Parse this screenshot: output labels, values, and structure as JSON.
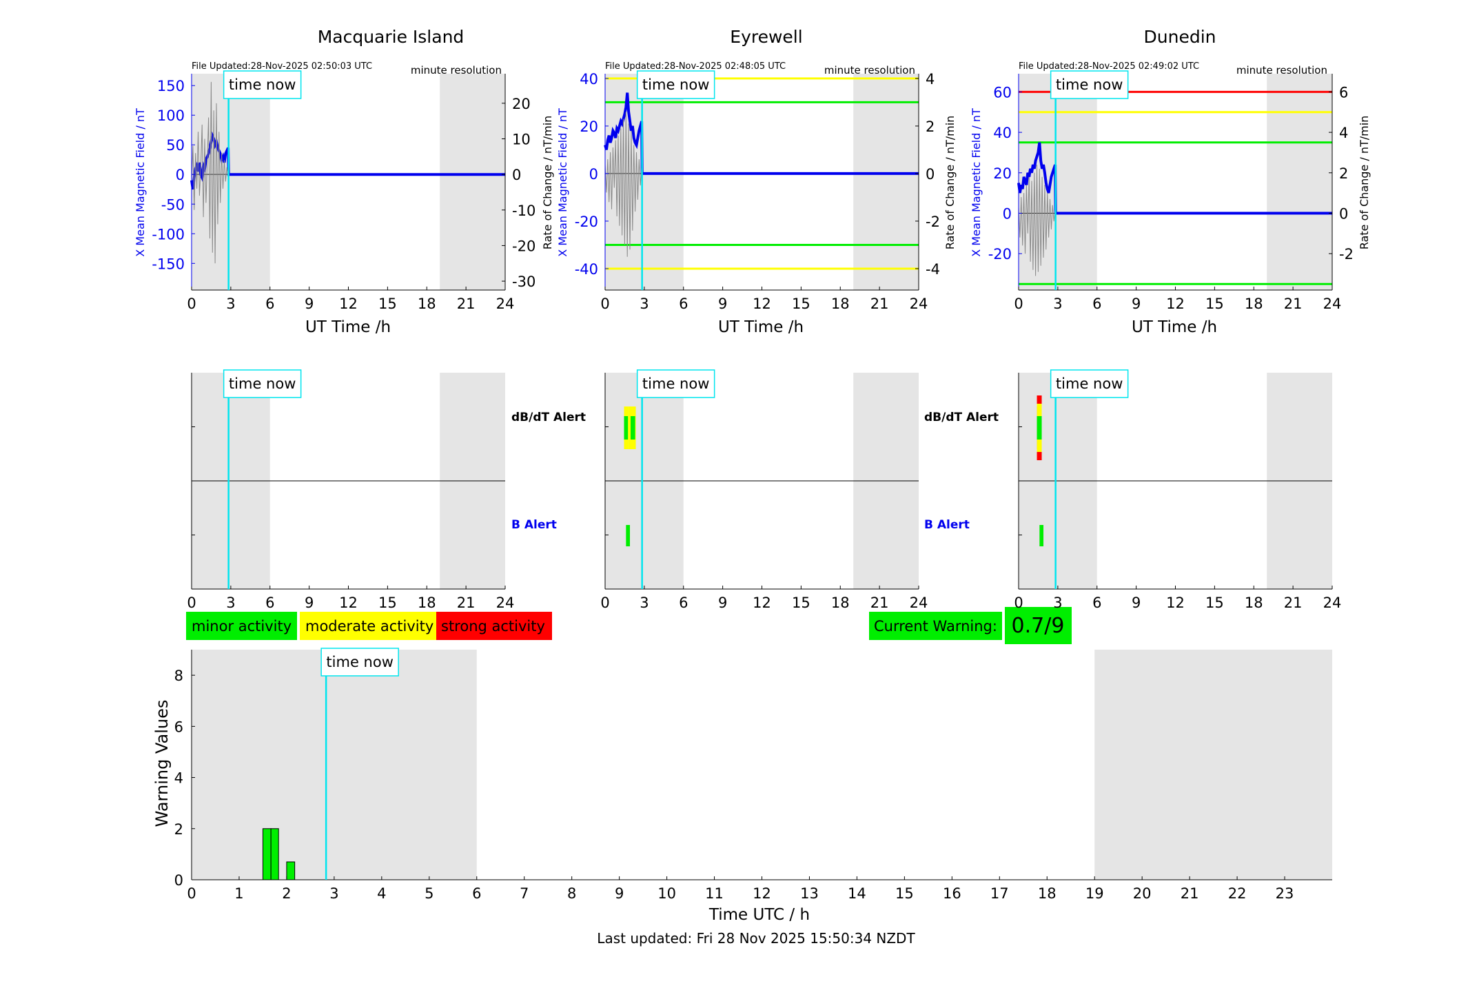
{
  "stations": [
    {
      "name": "Macquarie Island",
      "file_updated": "File Updated:28-Nov-2025 02:50:03 UTC",
      "resolution": "minute resolution",
      "time_now_label": "time now",
      "xlabel": "UT Time /h",
      "left_ylabel": "X Mean Magnetic Field / nT",
      "right_ylabel": "Rate of Change / nT/min"
    },
    {
      "name": "Eyrewell",
      "file_updated": "File Updated:28-Nov-2025 02:48:05 UTC",
      "resolution": "minute resolution",
      "time_now_label": "time now",
      "xlabel": "UT Time /h",
      "left_ylabel": "X Mean Magnetic Field / nT",
      "right_ylabel": "Rate of Change / nT/min"
    },
    {
      "name": "Dunedin",
      "file_updated": "File Updated:28-Nov-2025 02:49:02 UTC",
      "resolution": "minute resolution",
      "time_now_label": "time now",
      "xlabel": "UT Time /h",
      "left_ylabel": "X Mean Magnetic Field / nT",
      "right_ylabel": "Rate of Change / nT/min"
    }
  ],
  "alerts": {
    "dbdt_label": "dB/dT Alert",
    "b_label": "B Alert"
  },
  "legend": {
    "minor": "minor activity",
    "moderate": "moderate activity",
    "strong": "strong activity"
  },
  "current_warning": {
    "label": "Current Warning:",
    "value": "0.7/9"
  },
  "warning_chart": {
    "ylabel": "Warning Values",
    "xlabel": "Time UTC / h",
    "time_now_label": "time now"
  },
  "last_updated": "Last updated: Fri 28 Nov 2025 15:50:34 NZDT",
  "colors": {
    "minor": "#00ee00",
    "moderate": "#ffff00",
    "strong": "#ff0000",
    "time_now": "#00e5ee",
    "field": "#0000ee",
    "shade": "#e5e5e5"
  },
  "chart_data": [
    {
      "type": "line",
      "station": "Macquarie Island",
      "x_unit": "h",
      "xlim": [
        0,
        24
      ],
      "xticks": [
        0,
        3,
        6,
        9,
        12,
        15,
        18,
        21,
        24
      ],
      "left_ylim": [
        -195,
        170
      ],
      "left_yticks": [
        -150,
        -100,
        -50,
        0,
        50,
        100,
        150
      ],
      "right_ylim": [
        -32.5,
        28.3
      ],
      "right_yticks": [
        -30,
        -20,
        -10,
        0,
        10,
        20
      ],
      "time_now": 2.83,
      "shaded_hours": [
        [
          0,
          6
        ],
        [
          19,
          24
        ]
      ],
      "thresholds_field": [],
      "series": [
        {
          "axis": "left",
          "x": [
            0,
            0.1,
            0.2,
            0.3,
            0.4,
            0.5,
            0.6,
            0.7,
            0.8,
            0.9,
            1.0,
            1.1,
            1.2,
            1.3,
            1.4,
            1.5,
            1.6,
            1.7,
            1.8,
            1.9,
            2.0,
            2.1,
            2.2,
            2.3,
            2.4,
            2.5,
            2.6,
            2.7,
            2.8,
            2.83,
            24
          ],
          "y": [
            -10,
            -25,
            -5,
            10,
            15,
            5,
            20,
            0,
            -5,
            15,
            10,
            25,
            30,
            35,
            45,
            55,
            65,
            60,
            50,
            55,
            45,
            40,
            35,
            25,
            30,
            20,
            35,
            40,
            45,
            0,
            0
          ]
        },
        {
          "axis": "right",
          "x": [
            0,
            0.1,
            0.2,
            0.3,
            0.4,
            0.5,
            0.6,
            0.7,
            0.8,
            0.9,
            1.0,
            1.1,
            1.2,
            1.3,
            1.4,
            1.5,
            1.6,
            1.7,
            1.8,
            1.9,
            2.0,
            2.1,
            2.2,
            2.3,
            2.4,
            2.5,
            2.6,
            2.7,
            2.8,
            2.83
          ],
          "y": [
            -2,
            8,
            -10,
            6,
            -4,
            12,
            -6,
            2,
            14,
            -12,
            10,
            -8,
            4,
            16,
            -18,
            26,
            -22,
            18,
            -25,
            20,
            -14,
            12,
            -8,
            6,
            -4,
            4,
            -2,
            2,
            -1,
            0
          ]
        }
      ]
    },
    {
      "type": "line",
      "station": "Eyrewell",
      "x_unit": "h",
      "xlim": [
        0,
        24
      ],
      "xticks": [
        0,
        3,
        6,
        9,
        12,
        15,
        18,
        21,
        24
      ],
      "left_ylim": [
        -49,
        42
      ],
      "left_yticks": [
        -40,
        -20,
        0,
        20,
        40
      ],
      "right_ylim": [
        -4.9,
        4.2
      ],
      "right_yticks": [
        -4,
        -2,
        0,
        2,
        4
      ],
      "time_now": 2.83,
      "shaded_hours": [
        [
          0,
          6
        ],
        [
          19,
          24
        ]
      ],
      "thresholds_field": [
        {
          "value": 40,
          "color": "moderate"
        },
        {
          "value": 30,
          "color": "minor"
        },
        {
          "value": -30,
          "color": "minor"
        },
        {
          "value": -40,
          "color": "moderate"
        }
      ],
      "series": [
        {
          "axis": "left",
          "x": [
            0,
            0.1,
            0.2,
            0.3,
            0.4,
            0.5,
            0.6,
            0.7,
            0.8,
            0.9,
            1.0,
            1.1,
            1.2,
            1.3,
            1.4,
            1.5,
            1.6,
            1.7,
            1.8,
            1.9,
            2.0,
            2.1,
            2.2,
            2.3,
            2.4,
            2.5,
            2.6,
            2.7,
            2.8,
            2.83,
            24
          ],
          "y": [
            12,
            10,
            14,
            16,
            13,
            15,
            18,
            17,
            15,
            19,
            18,
            20,
            22,
            21,
            23,
            25,
            28,
            34,
            26,
            22,
            18,
            20,
            15,
            13,
            12,
            15,
            18,
            20,
            22,
            0,
            0
          ]
        },
        {
          "axis": "right",
          "x": [
            0,
            0.1,
            0.2,
            0.3,
            0.4,
            0.5,
            0.6,
            0.7,
            0.8,
            0.9,
            1.0,
            1.1,
            1.2,
            1.3,
            1.4,
            1.5,
            1.6,
            1.7,
            1.8,
            1.9,
            2.0,
            2.1,
            2.2,
            2.3,
            2.4,
            2.5,
            2.6,
            2.7,
            2.8,
            2.83
          ],
          "y": [
            0.4,
            -0.8,
            0.6,
            -1.2,
            0.9,
            -1.5,
            1.1,
            -0.6,
            1.4,
            -1.8,
            1.6,
            -2.2,
            1.9,
            -2.6,
            2.3,
            -3.0,
            2.6,
            -3.5,
            2.1,
            -3.2,
            1.8,
            -2.4,
            1.2,
            -1.6,
            0.9,
            -1.1,
            0.6,
            -0.5,
            0.3,
            0
          ]
        }
      ]
    },
    {
      "type": "line",
      "station": "Dunedin",
      "x_unit": "h",
      "xlim": [
        0,
        24
      ],
      "xticks": [
        0,
        3,
        6,
        9,
        12,
        15,
        18,
        21,
        24
      ],
      "left_ylim": [
        -38,
        69
      ],
      "left_yticks": [
        -20,
        0,
        20,
        40,
        60
      ],
      "right_ylim": [
        -3.8,
        6.9
      ],
      "right_yticks": [
        -2,
        0,
        2,
        4,
        6
      ],
      "time_now": 2.83,
      "shaded_hours": [
        [
          0,
          6
        ],
        [
          19,
          24
        ]
      ],
      "thresholds_field": [
        {
          "value": 60,
          "color": "strong"
        },
        {
          "value": 50,
          "color": "moderate"
        },
        {
          "value": 35,
          "color": "minor"
        },
        {
          "value": -35,
          "color": "minor"
        }
      ],
      "series": [
        {
          "axis": "left",
          "x": [
            0,
            0.1,
            0.2,
            0.3,
            0.4,
            0.5,
            0.6,
            0.7,
            0.8,
            0.9,
            1.0,
            1.1,
            1.2,
            1.3,
            1.4,
            1.5,
            1.6,
            1.7,
            1.8,
            1.9,
            2.0,
            2.1,
            2.2,
            2.3,
            2.4,
            2.5,
            2.6,
            2.7,
            2.8,
            2.83,
            24
          ],
          "y": [
            15,
            10,
            14,
            12,
            18,
            16,
            14,
            20,
            18,
            22,
            20,
            24,
            22,
            26,
            28,
            30,
            35,
            26,
            22,
            24,
            20,
            15,
            12,
            10,
            14,
            18,
            20,
            22,
            24,
            0,
            0
          ]
        },
        {
          "axis": "right",
          "x": [
            0,
            0.1,
            0.2,
            0.3,
            0.4,
            0.5,
            0.6,
            0.7,
            0.8,
            0.9,
            1.0,
            1.1,
            1.2,
            1.3,
            1.4,
            1.5,
            1.6,
            1.7,
            1.8,
            1.9,
            2.0,
            2.1,
            2.2,
            2.3,
            2.4,
            2.5,
            2.6,
            2.7,
            2.8,
            2.83
          ],
          "y": [
            0.3,
            -1.2,
            0.8,
            -1.6,
            1.0,
            -2.0,
            1.4,
            -1.0,
            1.8,
            -2.4,
            1.6,
            -2.8,
            2.0,
            -3.1,
            2.4,
            -2.9,
            2.2,
            -2.6,
            1.8,
            -2.2,
            1.4,
            -1.8,
            1.0,
            -1.2,
            0.7,
            -0.8,
            0.4,
            -0.4,
            0.2,
            0
          ]
        }
      ]
    },
    {
      "type": "bar",
      "station": "Macquarie Island",
      "panel": "alerts",
      "xlim": [
        0,
        24
      ],
      "xticks": [
        0,
        3,
        6,
        9,
        12,
        15,
        18,
        21,
        24
      ],
      "time_now": 2.83,
      "shaded_hours": [
        [
          0,
          6
        ],
        [
          19,
          24
        ]
      ],
      "dbdt_alerts": [],
      "b_alerts": []
    },
    {
      "type": "bar",
      "station": "Eyrewell",
      "panel": "alerts",
      "xlim": [
        0,
        24
      ],
      "xticks": [
        0,
        3,
        6,
        9,
        12,
        15,
        18,
        21,
        24
      ],
      "time_now": 2.83,
      "shaded_hours": [
        [
          0,
          6
        ],
        [
          19,
          24
        ]
      ],
      "dbdt_alerts": [
        {
          "x0": 1.45,
          "x1": 1.75,
          "level": "moderate"
        },
        {
          "x0": 1.75,
          "x1": 2.35,
          "level": "moderate"
        },
        {
          "x0": 1.45,
          "x1": 1.75,
          "level": "minor",
          "band": "inner"
        },
        {
          "x0": 1.95,
          "x1": 2.3,
          "level": "minor",
          "band": "inner"
        }
      ],
      "b_alerts": [
        {
          "x0": 1.6,
          "x1": 1.9,
          "level": "minor"
        }
      ]
    },
    {
      "type": "bar",
      "station": "Dunedin",
      "panel": "alerts",
      "xlim": [
        0,
        24
      ],
      "xticks": [
        0,
        3,
        6,
        9,
        12,
        15,
        18,
        21,
        24
      ],
      "time_now": 2.83,
      "shaded_hours": [
        [
          0,
          6
        ],
        [
          19,
          24
        ]
      ],
      "dbdt_alerts": [
        {
          "x0": 1.4,
          "x1": 1.7,
          "level": "strong"
        }
      ],
      "b_alerts": [
        {
          "x0": 1.6,
          "x1": 1.9,
          "level": "minor"
        }
      ]
    },
    {
      "type": "bar",
      "title": "",
      "xlabel": "Time UTC / h",
      "ylabel": "Warning Values",
      "xlim": [
        0,
        24
      ],
      "ylim": [
        0,
        9
      ],
      "xticks": [
        0,
        1,
        2,
        3,
        4,
        5,
        6,
        7,
        8,
        9,
        10,
        11,
        12,
        13,
        14,
        15,
        16,
        17,
        18,
        19,
        20,
        21,
        22,
        23
      ],
      "yticks": [
        0,
        2,
        4,
        6,
        8
      ],
      "time_now": 2.83,
      "shaded_hours": [
        [
          0,
          6
        ],
        [
          19,
          24
        ]
      ],
      "bars": [
        {
          "x0": 1.5,
          "x1": 1.67,
          "value": 2
        },
        {
          "x0": 1.67,
          "x1": 1.83,
          "value": 2
        },
        {
          "x0": 2.0,
          "x1": 2.17,
          "value": 0.7
        }
      ]
    }
  ]
}
